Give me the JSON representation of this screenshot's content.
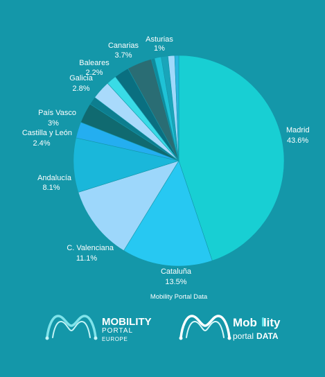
{
  "background": "#1497a9",
  "chart_data": {
    "type": "pie",
    "title": "",
    "source": "Mobility Portal Data",
    "slices": [
      {
        "name": "Madrid",
        "value_label": "43.6%",
        "value": 43.6,
        "color": "#18cfd3"
      },
      {
        "name": "Cataluña",
        "value_label": "13.5%",
        "value": 13.5,
        "color": "#27c8f2"
      },
      {
        "name": "C. Valenciana",
        "value_label": "11.1%",
        "value": 11.1,
        "color": "#9dd7fb"
      },
      {
        "name": "Andalucía",
        "value_label": "8.1%",
        "value": 8.1,
        "color": "#1ab7da"
      },
      {
        "name": "Castilla y León",
        "value_label": "2.4%",
        "value": 2.4,
        "color": "#24aef0"
      },
      {
        "name": "País Vasco",
        "value_label": "3%",
        "value": 3.0,
        "color": "#106a70"
      },
      {
        "name": "",
        "value_label": "",
        "value": 1.2,
        "color": "#0d7e8f"
      },
      {
        "name": "Galicia",
        "value_label": "2.8%",
        "value": 2.8,
        "color": "#a9dafb"
      },
      {
        "name": "",
        "value_label": "",
        "value": 1.5,
        "color": "#39dbe6"
      },
      {
        "name": "Baleares",
        "value_label": "2.2%",
        "value": 2.2,
        "color": "#0a6f80"
      },
      {
        "name": "Canarias",
        "value_label": "3.7%",
        "value": 3.7,
        "color": "#2a6d74"
      },
      {
        "name": "",
        "value_label": "",
        "value": 0.5,
        "color": "#0e8b9c"
      },
      {
        "name": "",
        "value_label": "",
        "value": 1.0,
        "color": "#1fc2d6"
      },
      {
        "name": "Asturias",
        "value_label": "1%",
        "value": 1.0,
        "color": "#19a5ba"
      },
      {
        "name": "",
        "value_label": "",
        "value": 1.0,
        "color": "#9fd9fb"
      },
      {
        "name": "",
        "value_label": "",
        "value": 0.6,
        "color": "#2ab6e0"
      }
    ]
  },
  "logos": {
    "left": {
      "line1": "MOBILITY",
      "line2": "PORTAL",
      "line3": "EUROPE"
    },
    "right": {
      "line1_a": "Mob",
      "line1_b": "lity",
      "line2_a": "portal",
      "line2_b": "DATA"
    }
  }
}
